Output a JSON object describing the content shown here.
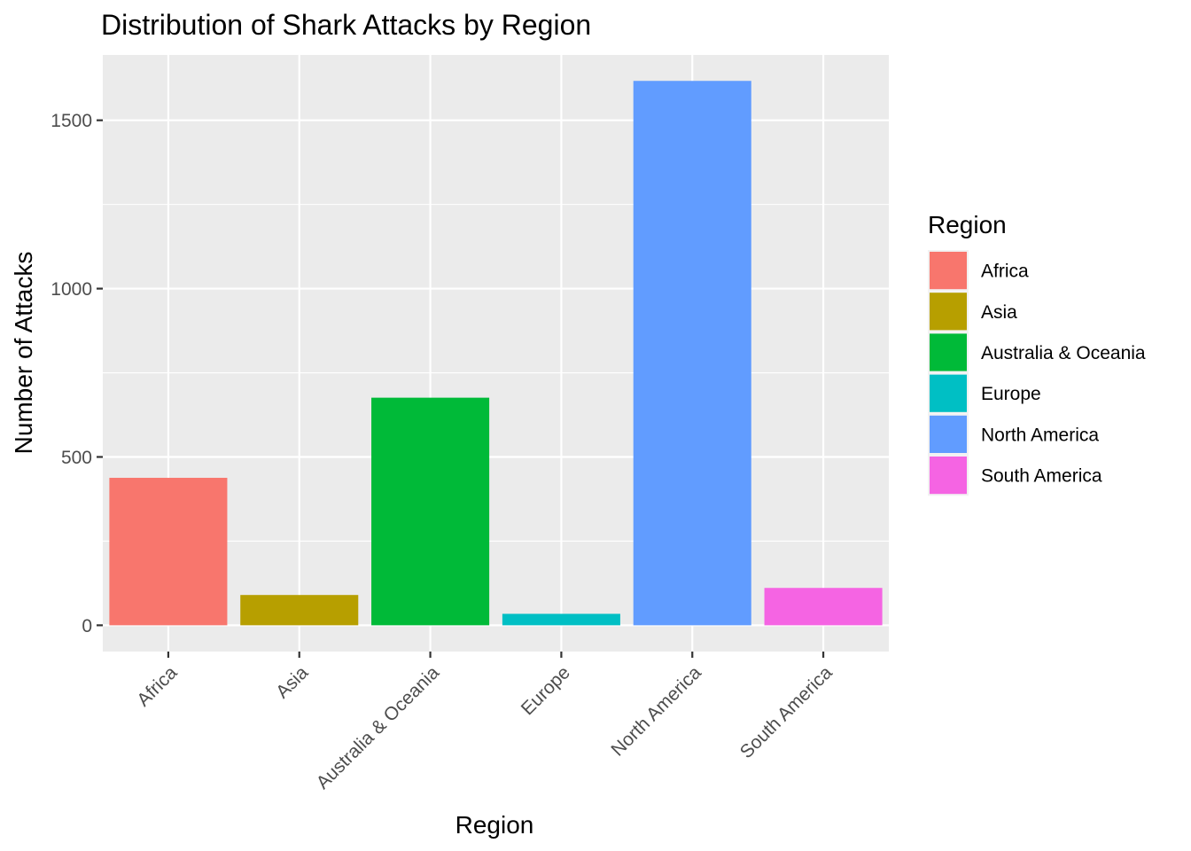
{
  "chart_data": {
    "type": "bar",
    "title": "Distribution of Shark Attacks by Region",
    "xlabel": "Region",
    "ylabel": "Number of Attacks",
    "categories": [
      "Africa",
      "Asia",
      "Australia & Oceania",
      "Europe",
      "North America",
      "South America"
    ],
    "values": [
      438,
      90,
      676,
      34,
      1617,
      111
    ],
    "colors": [
      "#F8766D",
      "#B79F00",
      "#00BA38",
      "#00BFC4",
      "#619CFF",
      "#F564E3"
    ],
    "ylim": [
      -78,
      1694
    ],
    "yticks": [
      0,
      500,
      1000,
      1500
    ],
    "ytick_labels": [
      "0",
      "500",
      "1000",
      "1500"
    ],
    "grid": true,
    "panel_background": "#EBEBEB",
    "legend": {
      "title": "Region",
      "position": "right",
      "entries": [
        "Africa",
        "Asia",
        "Australia & Oceania",
        "Europe",
        "North America",
        "South America"
      ]
    }
  }
}
